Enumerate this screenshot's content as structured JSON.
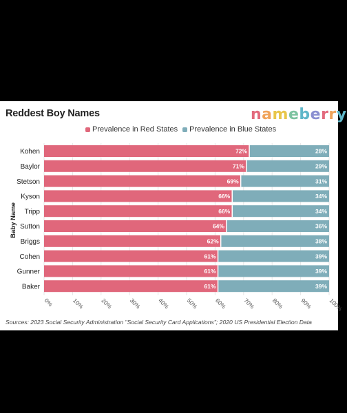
{
  "header": {
    "title": "Reddest Boy Names",
    "logo_text": "nameberry",
    "logo_colors": [
      "#e36a7d",
      "#f0a35a",
      "#e8c64a",
      "#7cc3a0",
      "#5fb7c9",
      "#8a8fd1",
      "#e36a7d",
      "#f0a35a",
      "#5fb7c9"
    ]
  },
  "legend": {
    "red_label": "Prevalence in Red States",
    "blue_label": "Prevalence in Blue States"
  },
  "footer": {
    "source": "Sources: 2023 Social Security Administration \"Social Security Card Applications\"; 2020 US Presidential Election Data"
  },
  "colors": {
    "red": "#e0677b",
    "blue": "#7fadb9"
  },
  "chart_data": {
    "type": "bar",
    "orientation": "horizontal",
    "stacked": true,
    "title": "Reddest Boy Names",
    "ylabel": "Baby Name",
    "xlabel": "",
    "categories": [
      "Kohen",
      "Baylor",
      "Stetson",
      "Kyson",
      "Tripp",
      "Sutton",
      "Briggs",
      "Cohen",
      "Gunner",
      "Baker"
    ],
    "series": [
      {
        "name": "Prevalence in Red States",
        "values": [
          72,
          71,
          69,
          66,
          66,
          64,
          62,
          61,
          61,
          61
        ]
      },
      {
        "name": "Prevalence in Blue States",
        "values": [
          28,
          29,
          31,
          34,
          34,
          36,
          38,
          39,
          39,
          39
        ]
      }
    ],
    "xlim": [
      0,
      100
    ],
    "xticks": [
      "0%",
      "10%",
      "20%",
      "30%",
      "40%",
      "50%",
      "60%",
      "70%",
      "80%",
      "90%",
      "100%"
    ],
    "value_suffix": "%",
    "grid": true,
    "legend_position": "top-center"
  }
}
